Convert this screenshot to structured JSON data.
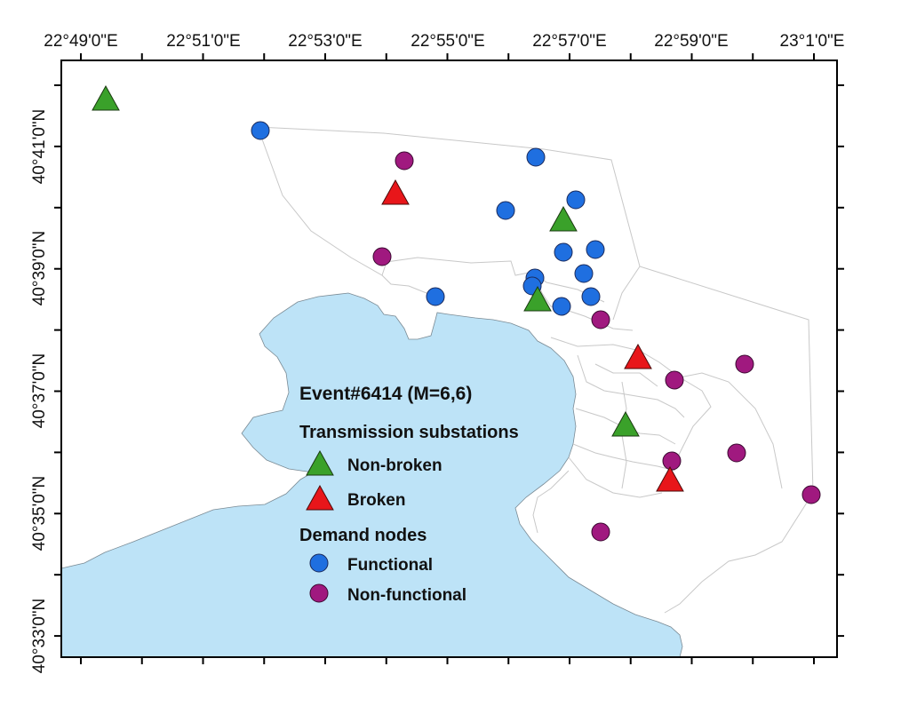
{
  "map": {
    "x_ticks": [
      "22°49'0\"E",
      "22°51'0\"E",
      "22°53'0\"E",
      "22°55'0\"E",
      "22°57'0\"E",
      "22°59'0\"E",
      "23°1'0\"E"
    ],
    "y_ticks": [
      "40°41'0\"N",
      "40°39'0\"N",
      "40°37'0\"N",
      "40°35'0\"N",
      "40°33'0\"N"
    ],
    "colors": {
      "sea": "#bde3f7",
      "non_broken": "#3aa12a",
      "broken": "#e8161a",
      "functional": "#1f6fe0",
      "non_functional": "#a0197f",
      "boundary": "#c8c8c8"
    }
  },
  "legend": {
    "title": "Event#6414 (M=6,6)",
    "substations_heading": "Transmission substations",
    "non_broken_label": "Non-broken",
    "broken_label": "Broken",
    "demand_heading": "Demand nodes",
    "functional_label": "Functional",
    "non_functional_label": "Non-functional"
  }
}
